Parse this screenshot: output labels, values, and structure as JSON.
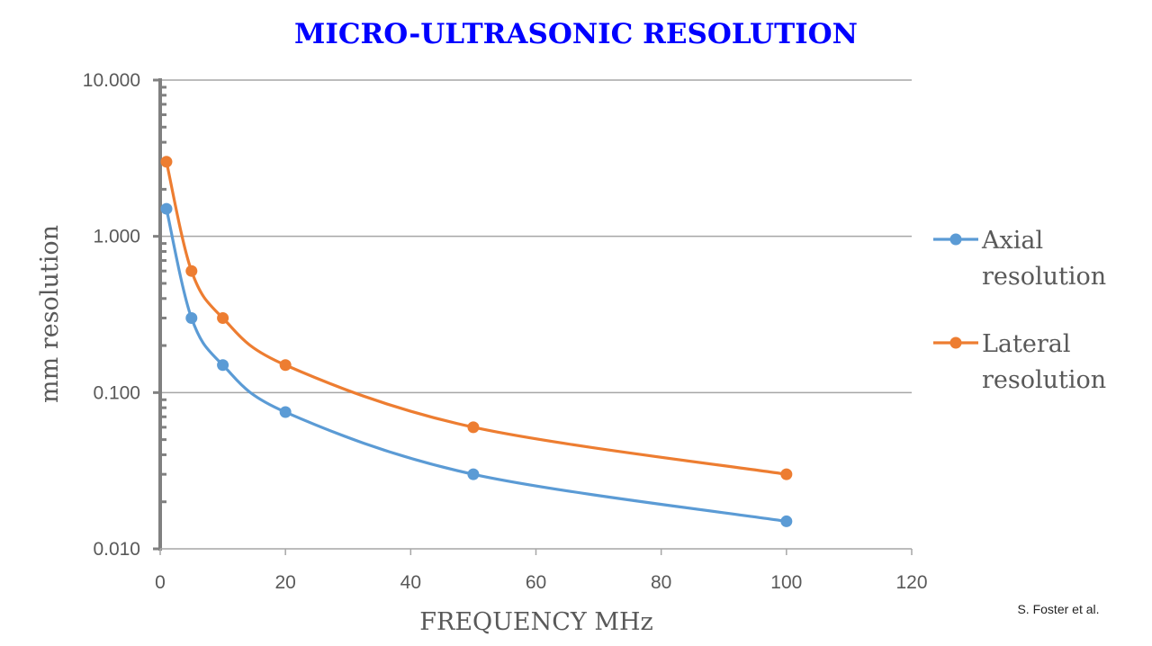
{
  "chart_data": {
    "type": "line",
    "title": "MICRO-ULTRASONIC RESOLUTION",
    "xlabel": "FREQUENCY MHz",
    "ylabel": "mm resolution",
    "xlim": [
      0,
      120
    ],
    "ylim": [
      0.01,
      10
    ],
    "y_scale": "log",
    "x_ticks": [
      "0",
      "20",
      "40",
      "60",
      "80",
      "100",
      "120"
    ],
    "y_ticks": [
      "0.010",
      "0.100",
      "1.000",
      "10.000"
    ],
    "grid": "horizontal major",
    "legend_position": "right",
    "smoothed": true,
    "series": [
      {
        "name": "Axial resolution",
        "legend_lines": [
          "Axial",
          "resolution"
        ],
        "color": "#5b9bd5",
        "x": [
          1,
          5,
          10,
          20,
          50,
          100
        ],
        "y": [
          1.5,
          0.3,
          0.15,
          0.075,
          0.03,
          0.015
        ]
      },
      {
        "name": "Lateral resolution",
        "legend_lines": [
          "Lateral",
          "resolution"
        ],
        "color": "#ed7d31",
        "x": [
          1,
          5,
          10,
          20,
          50,
          100
        ],
        "y": [
          3.0,
          0.6,
          0.3,
          0.15,
          0.06,
          0.03
        ]
      }
    ],
    "annotation": "S. Foster et al."
  }
}
